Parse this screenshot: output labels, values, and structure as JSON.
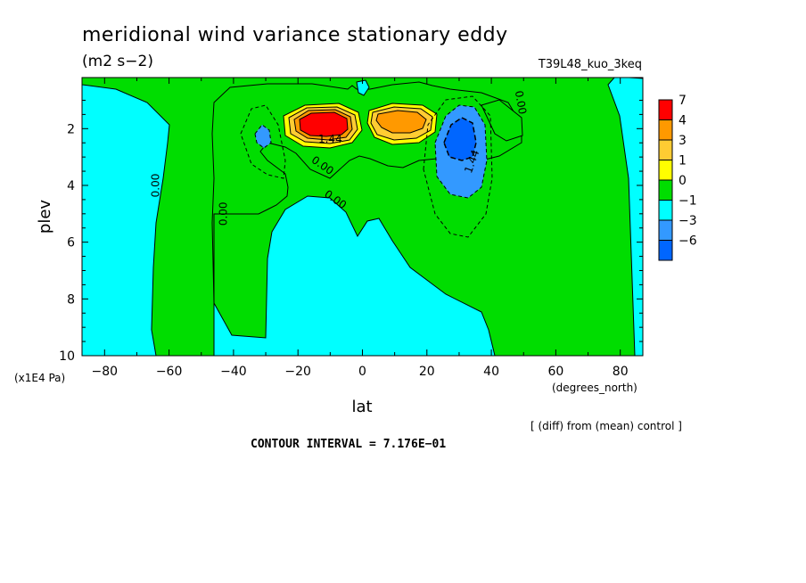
{
  "figure": {
    "title": "meridional wind variance  stationary eddy",
    "units": "(m2 s−2)",
    "experiment": "T39L48_kuo_3keq",
    "note": "[ (diff) from (mean) control ]",
    "contour_interval": "CONTOUR INTERVAL = 7.176E−01"
  },
  "chart_data": {
    "type": "heatmap",
    "title": "meridional wind variance  stationary eddy",
    "xlabel": "lat",
    "xunits": "(degrees_north)",
    "ylabel": "plev",
    "yunits": "(x1E4 Pa)",
    "xlim": [
      -87,
      87
    ],
    "ylim": [
      10,
      0.2
    ],
    "x_ticks": [
      -80,
      -60,
      -40,
      -20,
      0,
      20,
      40,
      60,
      80
    ],
    "x_tick_labels": [
      "−80",
      "−60",
      "−40",
      "−20",
      "0",
      "20",
      "40",
      "60",
      "80"
    ],
    "y_ticks": [
      2,
      4,
      6,
      8,
      10
    ],
    "y_tick_labels": [
      "2",
      "4",
      "6",
      "8",
      "10"
    ],
    "colorbar": {
      "levels": [
        "7",
        "4",
        "3",
        "1",
        "0",
        "−1",
        "−3",
        "−6"
      ],
      "colors": [
        "#ff0000",
        "#ff9900",
        "#ffcc33",
        "#ffff00",
        "#00dd00",
        "#00ffff",
        "#3399ff",
        "#0066ff"
      ]
    },
    "contour_labels": [
      {
        "text": "0.00",
        "lat": -63,
        "plev": 4.0,
        "rot": -90
      },
      {
        "text": "0.00",
        "lat": -42,
        "plev": 5.0,
        "rot": -90
      },
      {
        "text": "1.44",
        "lat": -10,
        "plev": 2.5,
        "rot": 0
      },
      {
        "text": "0.00",
        "lat": -13,
        "plev": 3.4,
        "rot": 35
      },
      {
        "text": "0.00",
        "lat": -9,
        "plev": 4.6,
        "rot": 35
      },
      {
        "text": "1.44",
        "lat": 35,
        "plev": 3.2,
        "rot": -70
      },
      {
        "text": "0.00",
        "lat": 48,
        "plev": 1.1,
        "rot": 80
      }
    ],
    "features": [
      {
        "name": "positive maximum",
        "lat": -12,
        "plev": 1.7,
        "value": 7
      },
      {
        "name": "positive maximum",
        "lat": 10,
        "plev": 1.7,
        "value": 4
      },
      {
        "name": "negative minimum",
        "lat": 30,
        "plev": 2.5,
        "value": -3
      },
      {
        "name": "negative minimum",
        "lat": -31,
        "plev": 2.2,
        "value": -3
      }
    ],
    "grid": false,
    "legend": "right"
  }
}
